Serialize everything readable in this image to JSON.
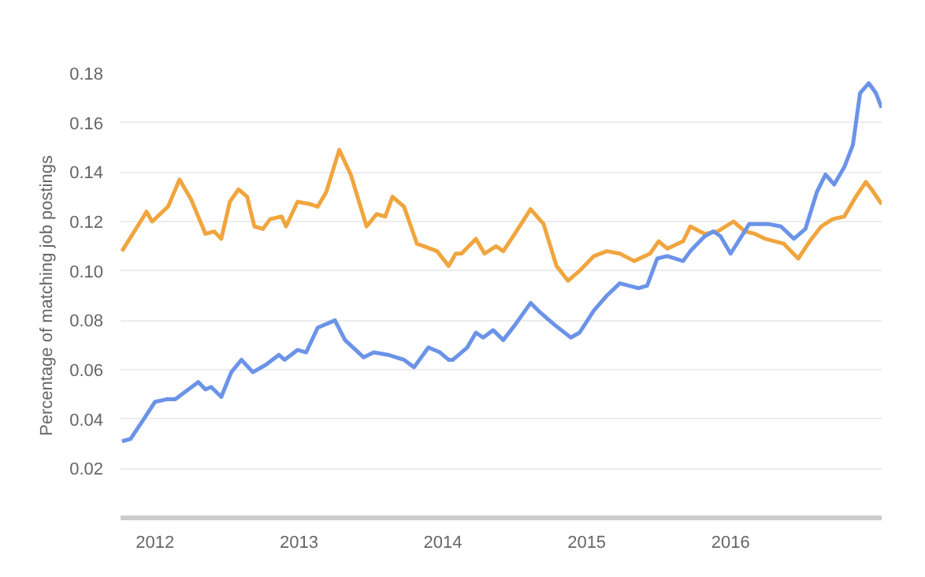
{
  "chart_data": {
    "type": "line",
    "ylabel": "Percentage of matching job postings",
    "xlim": [
      2011.76,
      2017.05
    ],
    "ylim": [
      0,
      0.18
    ],
    "xticks": [
      {
        "value": 2012,
        "label": "2012"
      },
      {
        "value": 2013,
        "label": "2013"
      },
      {
        "value": 2014,
        "label": "2014"
      },
      {
        "value": 2015,
        "label": "2015"
      },
      {
        "value": 2016,
        "label": "2016"
      }
    ],
    "yticks": [
      0.02,
      0.04,
      0.06,
      0.08,
      {
        "value": 0.1,
        "label": "0.10"
      },
      0.12,
      0.14,
      0.16,
      0.18
    ],
    "grid": "y",
    "line_style": "solid",
    "marker": "none",
    "series": [
      {
        "color": "#f0a53e",
        "x": [
          2011.77,
          2011.92,
          2011.94,
          2011.98,
          2012.09,
          2012.17,
          2012.25,
          2012.35,
          2012.41,
          2012.46,
          2012.52,
          2012.58,
          2012.64,
          2012.69,
          2012.75,
          2012.8,
          2012.88,
          2012.91,
          2012.99,
          2013.08,
          2013.13,
          2013.19,
          2013.28,
          2013.36,
          2013.47,
          2013.54,
          2013.6,
          2013.65,
          2013.73,
          2013.82,
          2013.96,
          2014.04,
          2014.09,
          2014.13,
          2014.23,
          2014.29,
          2014.37,
          2014.42,
          2014.5,
          2014.61,
          2014.7,
          2014.79,
          2014.87,
          2014.95,
          2015.05,
          2015.14,
          2015.23,
          2015.33,
          2015.44,
          2015.5,
          2015.56,
          2015.67,
          2015.72,
          2015.82,
          2015.91,
          2016.02,
          2016.1,
          2016.17,
          2016.24,
          2016.37,
          2016.47,
          2016.55,
          2016.63,
          2016.71,
          2016.79,
          2016.87,
          2016.94,
          2016.98,
          2017.05
        ],
        "values": [
          0.108,
          0.122,
          0.124,
          0.12,
          0.126,
          0.137,
          0.129,
          0.115,
          0.116,
          0.113,
          0.128,
          0.133,
          0.13,
          0.118,
          0.117,
          0.121,
          0.122,
          0.118,
          0.128,
          0.127,
          0.126,
          0.132,
          0.149,
          0.139,
          0.118,
          0.123,
          0.122,
          0.13,
          0.126,
          0.111,
          0.108,
          0.102,
          0.107,
          0.107,
          0.113,
          0.107,
          0.11,
          0.108,
          0.115,
          0.125,
          0.119,
          0.102,
          0.096,
          0.1,
          0.106,
          0.108,
          0.107,
          0.104,
          0.107,
          0.112,
          0.109,
          0.112,
          0.118,
          0.115,
          0.116,
          0.12,
          0.116,
          0.115,
          0.113,
          0.111,
          0.105,
          0.112,
          0.118,
          0.121,
          0.122,
          0.13,
          0.136,
          0.133,
          0.127
        ]
      },
      {
        "color": "#6b93e8",
        "x": [
          2011.77,
          2011.83,
          2011.91,
          2012.0,
          2012.08,
          2012.14,
          2012.3,
          2012.35,
          2012.39,
          2012.46,
          2012.53,
          2012.6,
          2012.68,
          2012.77,
          2012.86,
          2012.9,
          2012.99,
          2013.05,
          2013.13,
          2013.25,
          2013.32,
          2013.45,
          2013.52,
          2013.62,
          2013.73,
          2013.8,
          2013.9,
          2013.98,
          2014.04,
          2014.07,
          2014.17,
          2014.23,
          2014.28,
          2014.35,
          2014.42,
          2014.5,
          2014.61,
          2014.68,
          2014.78,
          2014.89,
          2014.95,
          2015.05,
          2015.14,
          2015.23,
          2015.36,
          2015.42,
          2015.49,
          2015.56,
          2015.67,
          2015.72,
          2015.82,
          2015.88,
          2015.93,
          2016.0,
          2016.13,
          2016.26,
          2016.35,
          2016.44,
          2016.52,
          2016.6,
          2016.66,
          2016.72,
          2016.79,
          2016.85,
          2016.9,
          2016.96,
          2017.01,
          2017.05
        ],
        "values": [
          0.031,
          0.032,
          0.039,
          0.047,
          0.048,
          0.048,
          0.055,
          0.052,
          0.053,
          0.049,
          0.059,
          0.064,
          0.059,
          0.062,
          0.066,
          0.064,
          0.068,
          0.067,
          0.077,
          0.08,
          0.072,
          0.065,
          0.067,
          0.066,
          0.064,
          0.061,
          0.069,
          0.067,
          0.064,
          0.064,
          0.069,
          0.075,
          0.073,
          0.076,
          0.072,
          0.078,
          0.087,
          0.083,
          0.078,
          0.073,
          0.075,
          0.084,
          0.09,
          0.095,
          0.093,
          0.094,
          0.105,
          0.106,
          0.104,
          0.108,
          0.114,
          0.116,
          0.114,
          0.107,
          0.119,
          0.119,
          0.118,
          0.113,
          0.117,
          0.132,
          0.139,
          0.135,
          0.142,
          0.151,
          0.172,
          0.176,
          0.172,
          0.166
        ]
      }
    ]
  }
}
